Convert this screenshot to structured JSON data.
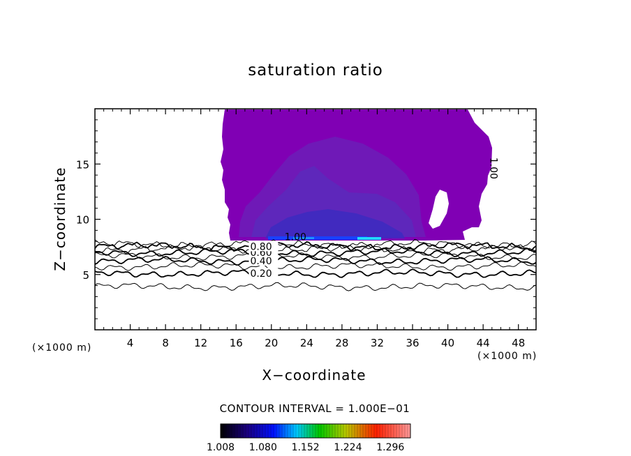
{
  "chart_data": {
    "type": "contour",
    "title": "saturation ratio",
    "xlabel": "X−coordinate",
    "ylabel": "Z−coordinate",
    "x_unit_left": "(×1000 m)",
    "x_unit_right": "(×1000 m)",
    "xlim": [
      0,
      50
    ],
    "ylim": [
      0,
      20
    ],
    "xticks": [
      4,
      8,
      12,
      16,
      20,
      24,
      28,
      32,
      36,
      40,
      44,
      48
    ],
    "yticks": [
      5,
      10,
      15
    ],
    "contour_interval_text": "CONTOUR INTERVAL = 1.000E−01",
    "contour_lines": [
      {
        "level": 0.1,
        "z": 3.9,
        "label": ""
      },
      {
        "level": 0.2,
        "z": 5.1,
        "label": "0.20",
        "label_x": 17.6
      },
      {
        "level": 0.3,
        "z": 5.75,
        "label": ""
      },
      {
        "level": 0.4,
        "z": 6.25,
        "label": "0.40",
        "label_x": 17.6
      },
      {
        "level": 0.5,
        "z": 6.65,
        "label": ""
      },
      {
        "level": 0.6,
        "z": 7.0,
        "label": "0.60",
        "label_x": 17.6
      },
      {
        "level": 0.7,
        "z": 7.3,
        "label": ""
      },
      {
        "level": 0.8,
        "z": 7.55,
        "label": "0.80",
        "label_x": 17.6
      },
      {
        "level": 0.9,
        "z": 7.75,
        "label": ""
      }
    ],
    "contour_labels_extra": [
      {
        "text": "1.00",
        "x": 21.5,
        "z": 8.1,
        "rotate": 0
      },
      {
        "text": "1.00",
        "x": 44.8,
        "z": 15.6,
        "rotate": 90
      }
    ],
    "supersaturated_region": {
      "x_range": [
        15.4,
        45.2
      ],
      "z_range": [
        8.0,
        20.0
      ],
      "base_value": 1.02
    },
    "colorbar": {
      "tick_labels": [
        "1.008",
        "1.080",
        "1.152",
        "1.224",
        "1.296"
      ],
      "min": 1.008,
      "max": 1.33,
      "colors": [
        "#000000",
        "#1a0070",
        "#0000ff",
        "#00c8ff",
        "#00c800",
        "#c8c800",
        "#ff0000",
        "#ff9090"
      ]
    }
  }
}
